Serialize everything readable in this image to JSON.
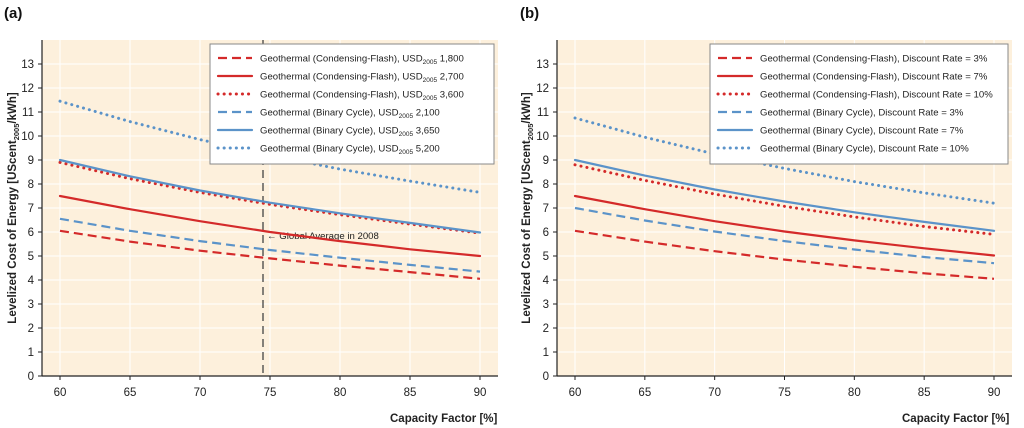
{
  "colors": {
    "red": "#d42a2a",
    "blue": "#5b93c9",
    "plot_bg": "#fdf0dc",
    "grid": "#ffffff"
  },
  "chart_data": [
    {
      "type": "line",
      "panel_label": "(a)",
      "xlabel": "Capacity Factor [%]",
      "ylabel_main": "Levelized Cost of Energy [UScent",
      "ylabel_sub": "2005",
      "ylabel_end": "/kWh]",
      "xlim": [
        60,
        90
      ],
      "ylim": [
        0,
        14
      ],
      "xticks": [
        60,
        65,
        70,
        75,
        80,
        85,
        90
      ],
      "yticks": [
        0,
        1,
        2,
        3,
        4,
        5,
        6,
        7,
        8,
        9,
        10,
        11,
        12,
        13
      ],
      "grid": true,
      "legend_position": "top-right",
      "annotation": {
        "x": 74.5,
        "text": "← Global Average in 2008"
      },
      "series": [
        {
          "name_main": "Geothermal (Condensing-Flash), USD",
          "name_sub": "2005",
          "name_end": " 1,800",
          "color": "red",
          "style": "dashed",
          "x": [
            60,
            65,
            70,
            75,
            80,
            85,
            90
          ],
          "y": [
            6.05,
            5.6,
            5.22,
            4.9,
            4.6,
            4.33,
            4.05
          ]
        },
        {
          "name_main": "Geothermal (Condensing-Flash), USD",
          "name_sub": "2005",
          "name_end": " 2,700",
          "color": "red",
          "style": "solid",
          "x": [
            60,
            65,
            70,
            75,
            80,
            85,
            90
          ],
          "y": [
            7.5,
            6.95,
            6.45,
            6.0,
            5.62,
            5.28,
            5.0
          ]
        },
        {
          "name_main": "Geothermal (Condensing-Flash), USD",
          "name_sub": "2005",
          "name_end": " 3,600",
          "color": "red",
          "style": "dotted",
          "x": [
            60,
            65,
            70,
            75,
            80,
            85,
            90
          ],
          "y": [
            8.9,
            8.22,
            7.65,
            7.15,
            6.72,
            6.33,
            5.95
          ]
        },
        {
          "name_main": "Geothermal (Binary Cycle), USD",
          "name_sub": "2005",
          "name_end": " 2,100",
          "color": "blue",
          "style": "dashed",
          "x": [
            60,
            65,
            70,
            75,
            80,
            85,
            90
          ],
          "y": [
            6.55,
            6.05,
            5.62,
            5.25,
            4.93,
            4.63,
            4.35
          ]
        },
        {
          "name_main": "Geothermal (Binary Cycle), USD",
          "name_sub": "2005",
          "name_end": " 3,650",
          "color": "blue",
          "style": "solid",
          "x": [
            60,
            65,
            70,
            75,
            80,
            85,
            90
          ],
          "y": [
            9.0,
            8.32,
            7.73,
            7.22,
            6.78,
            6.38,
            5.98
          ]
        },
        {
          "name_main": "Geothermal (Binary Cycle), USD",
          "name_sub": "2005",
          "name_end": " 5,200",
          "color": "blue",
          "style": "dotted",
          "x": [
            60,
            65,
            70,
            75,
            80,
            85,
            90
          ],
          "y": [
            11.45,
            10.6,
            9.85,
            9.2,
            8.62,
            8.12,
            7.65
          ]
        }
      ]
    },
    {
      "type": "line",
      "panel_label": "(b)",
      "xlabel": "Capacity Factor [%]",
      "ylabel_main": "Levelized Cost of Energy [UScent",
      "ylabel_sub": "2005",
      "ylabel_end": "/kWh]",
      "xlim": [
        60,
        90
      ],
      "ylim": [
        0,
        14
      ],
      "xticks": [
        60,
        65,
        70,
        75,
        80,
        85,
        90
      ],
      "yticks": [
        0,
        1,
        2,
        3,
        4,
        5,
        6,
        7,
        8,
        9,
        10,
        11,
        12,
        13
      ],
      "grid": true,
      "legend_position": "top-right",
      "series": [
        {
          "name_main": "Geothermal (Condensing-Flash), Discount Rate = 3%",
          "color": "red",
          "style": "dashed",
          "x": [
            60,
            65,
            70,
            75,
            80,
            85,
            90
          ],
          "y": [
            6.05,
            5.6,
            5.2,
            4.85,
            4.55,
            4.28,
            4.05
          ]
        },
        {
          "name_main": "Geothermal (Condensing-Flash), Discount Rate = 7%",
          "color": "red",
          "style": "solid",
          "x": [
            60,
            65,
            70,
            75,
            80,
            85,
            90
          ],
          "y": [
            7.5,
            6.95,
            6.45,
            6.02,
            5.65,
            5.32,
            5.02
          ]
        },
        {
          "name_main": "Geothermal (Condensing-Flash), Discount Rate = 10%",
          "color": "red",
          "style": "dotted",
          "x": [
            60,
            65,
            70,
            75,
            80,
            85,
            90
          ],
          "y": [
            8.8,
            8.15,
            7.58,
            7.07,
            6.63,
            6.23,
            5.9
          ]
        },
        {
          "name_main": "Geothermal (Binary Cycle), Discount Rate = 3%",
          "color": "blue",
          "style": "dashed",
          "x": [
            60,
            65,
            70,
            75,
            80,
            85,
            90
          ],
          "y": [
            7.0,
            6.48,
            6.02,
            5.62,
            5.27,
            4.96,
            4.7
          ]
        },
        {
          "name_main": "Geothermal (Binary Cycle), Discount Rate = 7%",
          "color": "blue",
          "style": "solid",
          "x": [
            60,
            65,
            70,
            75,
            80,
            85,
            90
          ],
          "y": [
            9.0,
            8.35,
            7.77,
            7.27,
            6.82,
            6.42,
            6.05
          ]
        },
        {
          "name_main": "Geothermal (Binary Cycle), Discount Rate = 10%",
          "color": "blue",
          "style": "dotted",
          "x": [
            60,
            65,
            70,
            75,
            80,
            85,
            90
          ],
          "y": [
            10.75,
            9.95,
            9.25,
            8.65,
            8.1,
            7.63,
            7.2
          ]
        }
      ]
    }
  ]
}
